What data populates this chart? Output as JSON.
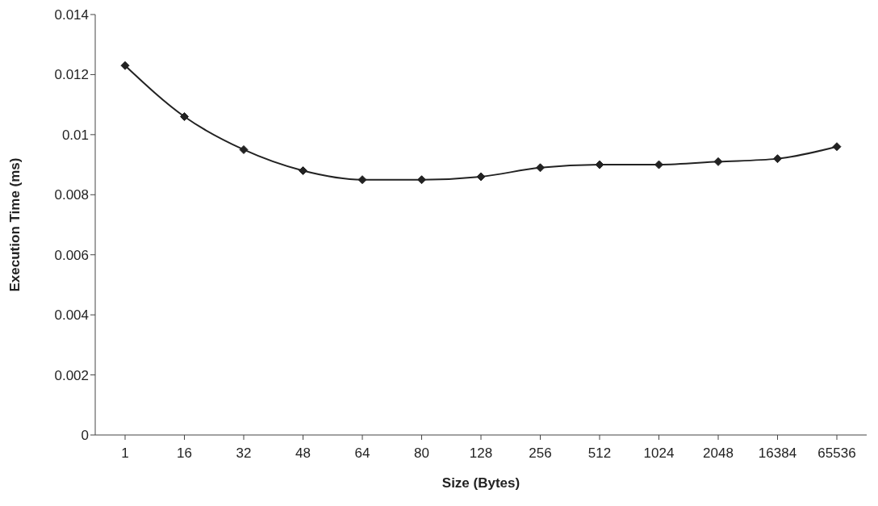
{
  "chart_data": {
    "type": "line",
    "xlabel": "Size (Bytes)",
    "ylabel": "Execution Time (ms)",
    "categories": [
      "1",
      "16",
      "32",
      "48",
      "64",
      "80",
      "128",
      "256",
      "512",
      "1024",
      "2048",
      "16384",
      "65536"
    ],
    "series": [
      {
        "color": "#222222",
        "values": [
          0.0123,
          0.0106,
          0.0095,
          0.0088,
          0.0085,
          0.0085,
          0.0086,
          0.0089,
          0.009,
          0.009,
          0.0091,
          0.0092,
          0.0096
        ]
      }
    ],
    "ylim": [
      0,
      0.014
    ],
    "yticks": [
      0,
      0.002,
      0.004,
      0.006,
      0.008,
      0.01,
      0.012,
      0.014
    ],
    "grid": false,
    "legend": false,
    "marker": "diamond",
    "line_style": "solid"
  }
}
